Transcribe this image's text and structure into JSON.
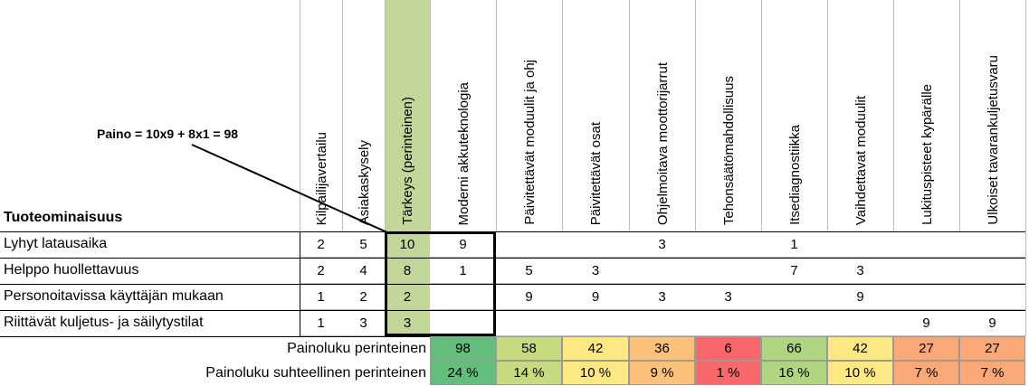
{
  "annotation": "Paino = 10x9 + 8x1 = 98",
  "row_header": "Tuoteominaisuus",
  "columns": [
    "Kilpailijavertailu",
    "Asiakaskysely",
    "Tärkeys (perinteinen)",
    "Moderni akkuteknologia",
    "Päivitettävät moduulit ja ohj",
    "Päivitettävät osat",
    "Ohjelmoitava moottorijarrut",
    "Tehonsäätömahdollisuus",
    "Itsediagnostiikka",
    "Vaihdettavat moduulit",
    "Lukituspisteet kypärälle",
    "Ulkoiset tavarankuljetusvaru"
  ],
  "rows": [
    {
      "label": "Lyhyt latausaika",
      "values": [
        "2",
        "5",
        "10",
        "9",
        "",
        "",
        "3",
        "",
        "1",
        "",
        "",
        ""
      ]
    },
    {
      "label": "Helppo huollettavuus",
      "values": [
        "2",
        "4",
        "8",
        "1",
        "5",
        "3",
        "",
        "",
        "7",
        "3",
        "",
        ""
      ]
    },
    {
      "label": "Personoitavissa käyttäjän mukaan",
      "values": [
        "1",
        "2",
        "2",
        "",
        "9",
        "9",
        "3",
        "3",
        "",
        "9",
        "",
        ""
      ]
    },
    {
      "label": "Riittävät kuljetus- ja säilytystilat",
      "values": [
        "1",
        "3",
        "3",
        "",
        "",
        "",
        "",
        "",
        "",
        "",
        "9",
        "9"
      ]
    }
  ],
  "summary": [
    {
      "label": "Painoluku perinteinen",
      "values": [
        "98",
        "58",
        "42",
        "36",
        "6",
        "66",
        "42",
        "27",
        "27"
      ]
    },
    {
      "label": "Painoluku suhteellinen perinteinen",
      "values": [
        "24 %",
        "14 %",
        "10 %",
        "9 %",
        "1 %",
        "16 %",
        "10 %",
        "7 %",
        "7 %"
      ]
    }
  ],
  "colors": {
    "importance_green": "#c4d79b",
    "summary_fills": [
      "#63be7b",
      "#c6db80",
      "#fde883",
      "#fcc17b",
      "#f8696b",
      "#b0d580",
      "#fde883",
      "#fba877",
      "#fba877"
    ],
    "highlight_box": "#000000"
  }
}
